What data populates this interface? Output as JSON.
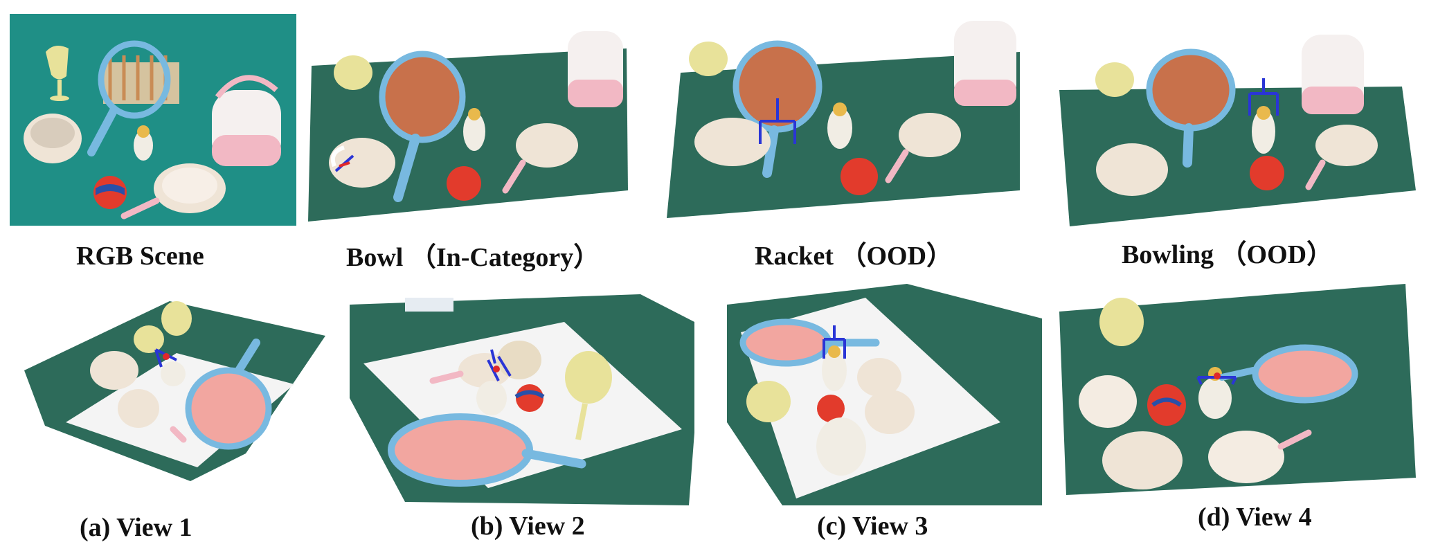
{
  "top_row": {
    "rgb_caption": "RGB Scene",
    "bowl_caption": "Bowl （In-Category）",
    "racket_caption": "Racket （OOD）",
    "bowling_caption": "Bowling （OOD）"
  },
  "bottom_row": {
    "view1_caption": "(a) View 1",
    "view2_caption": "(b) View 2",
    "view3_caption": "(c) View 3",
    "view4_caption": "(d) View 4"
  },
  "colors": {
    "table_teal": "#1f8f86",
    "pointcloud_teal": "#2d6b5a",
    "mat_white": "#f4f4f4",
    "racket_blue": "#78b9e0",
    "grasp_blue": "#2a35d6",
    "grasp_red": "#e0282a",
    "bowl_cream": "#efe4d6",
    "cooker_pink": "#f2b8c4",
    "cup_yellow": "#e8e29a"
  }
}
